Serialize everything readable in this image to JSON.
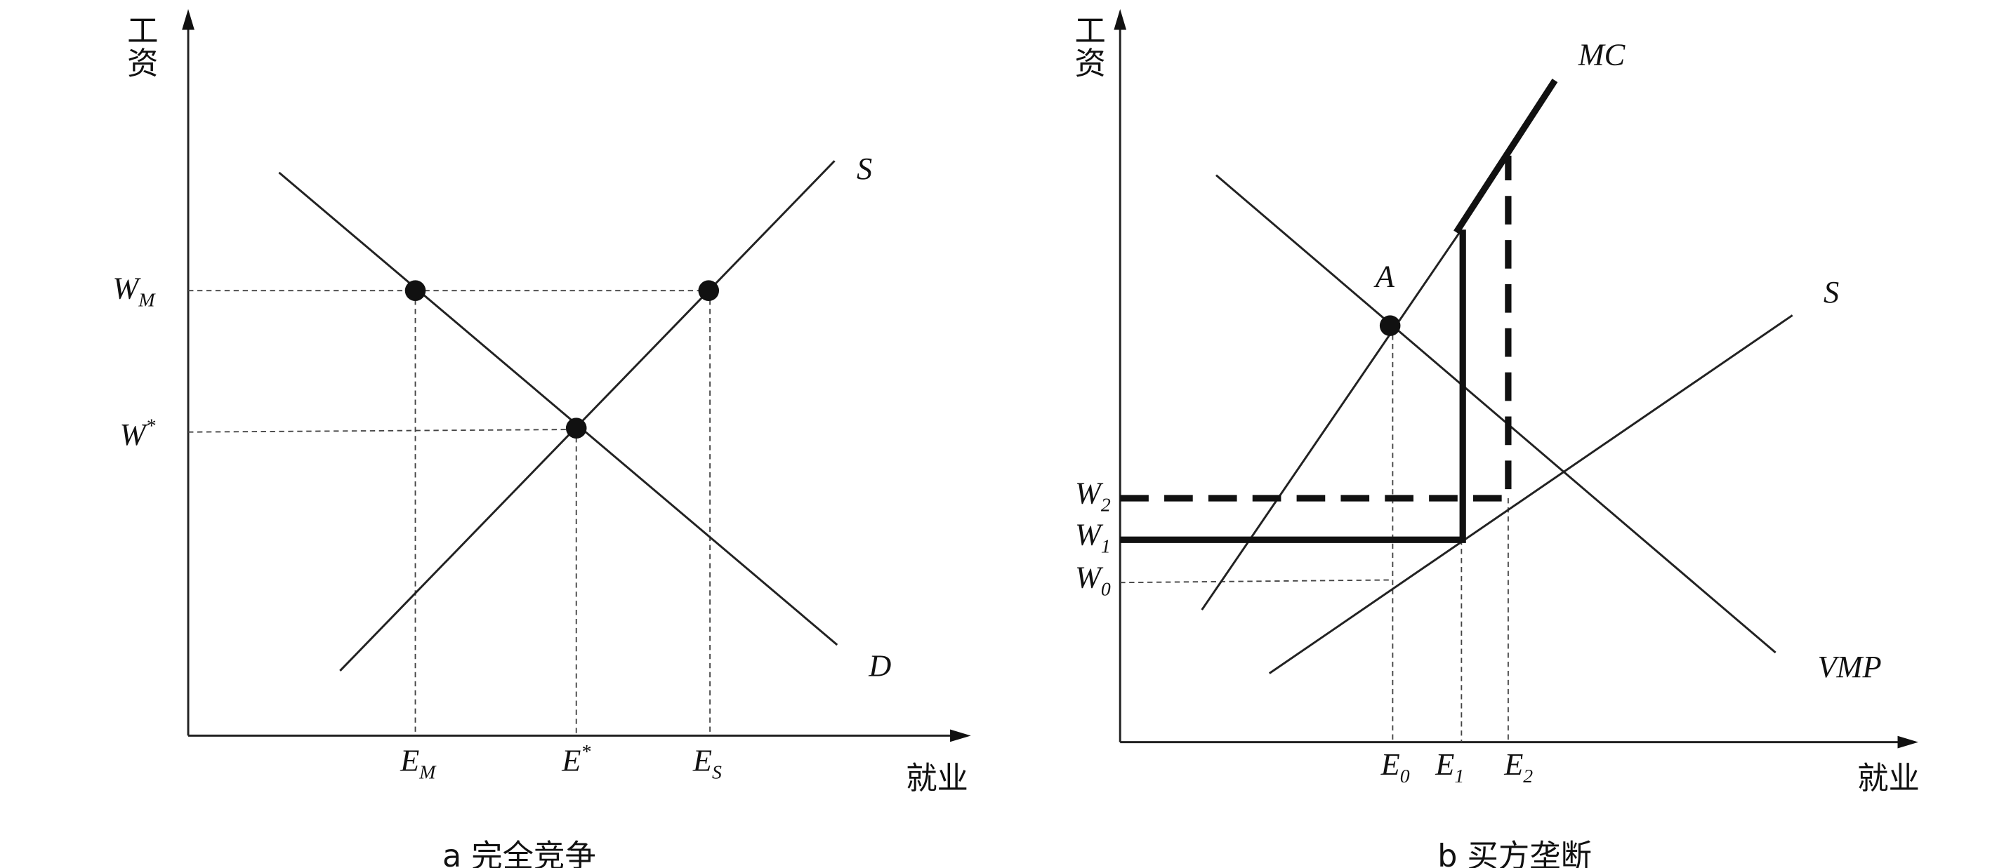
{
  "panels": [
    {
      "caption": "a 完全竞争",
      "y_axis": "工资",
      "x_axis": "就业",
      "curves": {
        "supply": "S",
        "demand": "D"
      },
      "wage_labels": [
        {
          "base": "W",
          "sub": "M"
        },
        {
          "base": "W",
          "sup": "*"
        }
      ],
      "employment_labels": [
        {
          "base": "E",
          "sub": "M"
        },
        {
          "base": "E",
          "sup": "*"
        },
        {
          "base": "E",
          "sub": "S"
        }
      ]
    },
    {
      "caption": "b 买方垄断",
      "y_axis": "工资",
      "x_axis": "就业",
      "curves": {
        "marginal_cost": "MC",
        "supply": "S",
        "demand": "VMP"
      },
      "point": "A",
      "wage_labels": [
        {
          "base": "W",
          "sub": "2"
        },
        {
          "base": "W",
          "sub": "1"
        },
        {
          "base": "W",
          "sub": "0"
        }
      ],
      "employment_labels": [
        {
          "base": "E",
          "sub": "0"
        },
        {
          "base": "E",
          "sub": "1"
        },
        {
          "base": "E",
          "sub": "2"
        }
      ]
    }
  ]
}
